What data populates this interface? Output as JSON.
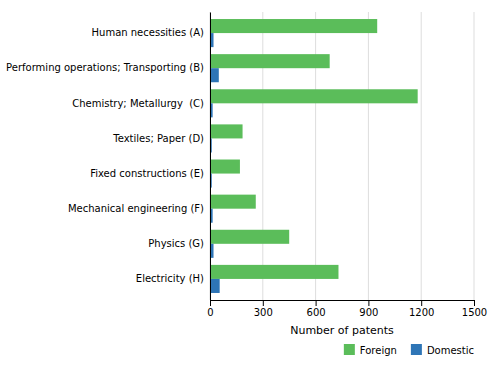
{
  "chart_data": {
    "type": "bar",
    "orientation": "horizontal",
    "categories": [
      "Human necessities (A)",
      "Performing operations; Transporting (B)",
      "Chemistry; Metallurgy  (C)",
      "Textiles; Paper (D)",
      "Fixed constructions (E)",
      "Mechanical engineering (F)",
      "Physics (G)",
      "Electricity (H)"
    ],
    "series": [
      {
        "name": "Foreign",
        "color": "#5BBD5A",
        "values": [
          950,
          680,
          1180,
          185,
          170,
          260,
          450,
          730
        ]
      },
      {
        "name": "Domestic",
        "color": "#2E75B6",
        "values": [
          20,
          50,
          15,
          10,
          10,
          15,
          20,
          55
        ]
      }
    ],
    "xlabel": "Number of patents",
    "xlim": [
      0,
      1500
    ],
    "xticks": [
      0,
      300,
      600,
      900,
      1200,
      1500
    ],
    "grid": true,
    "legend": "lower right"
  }
}
